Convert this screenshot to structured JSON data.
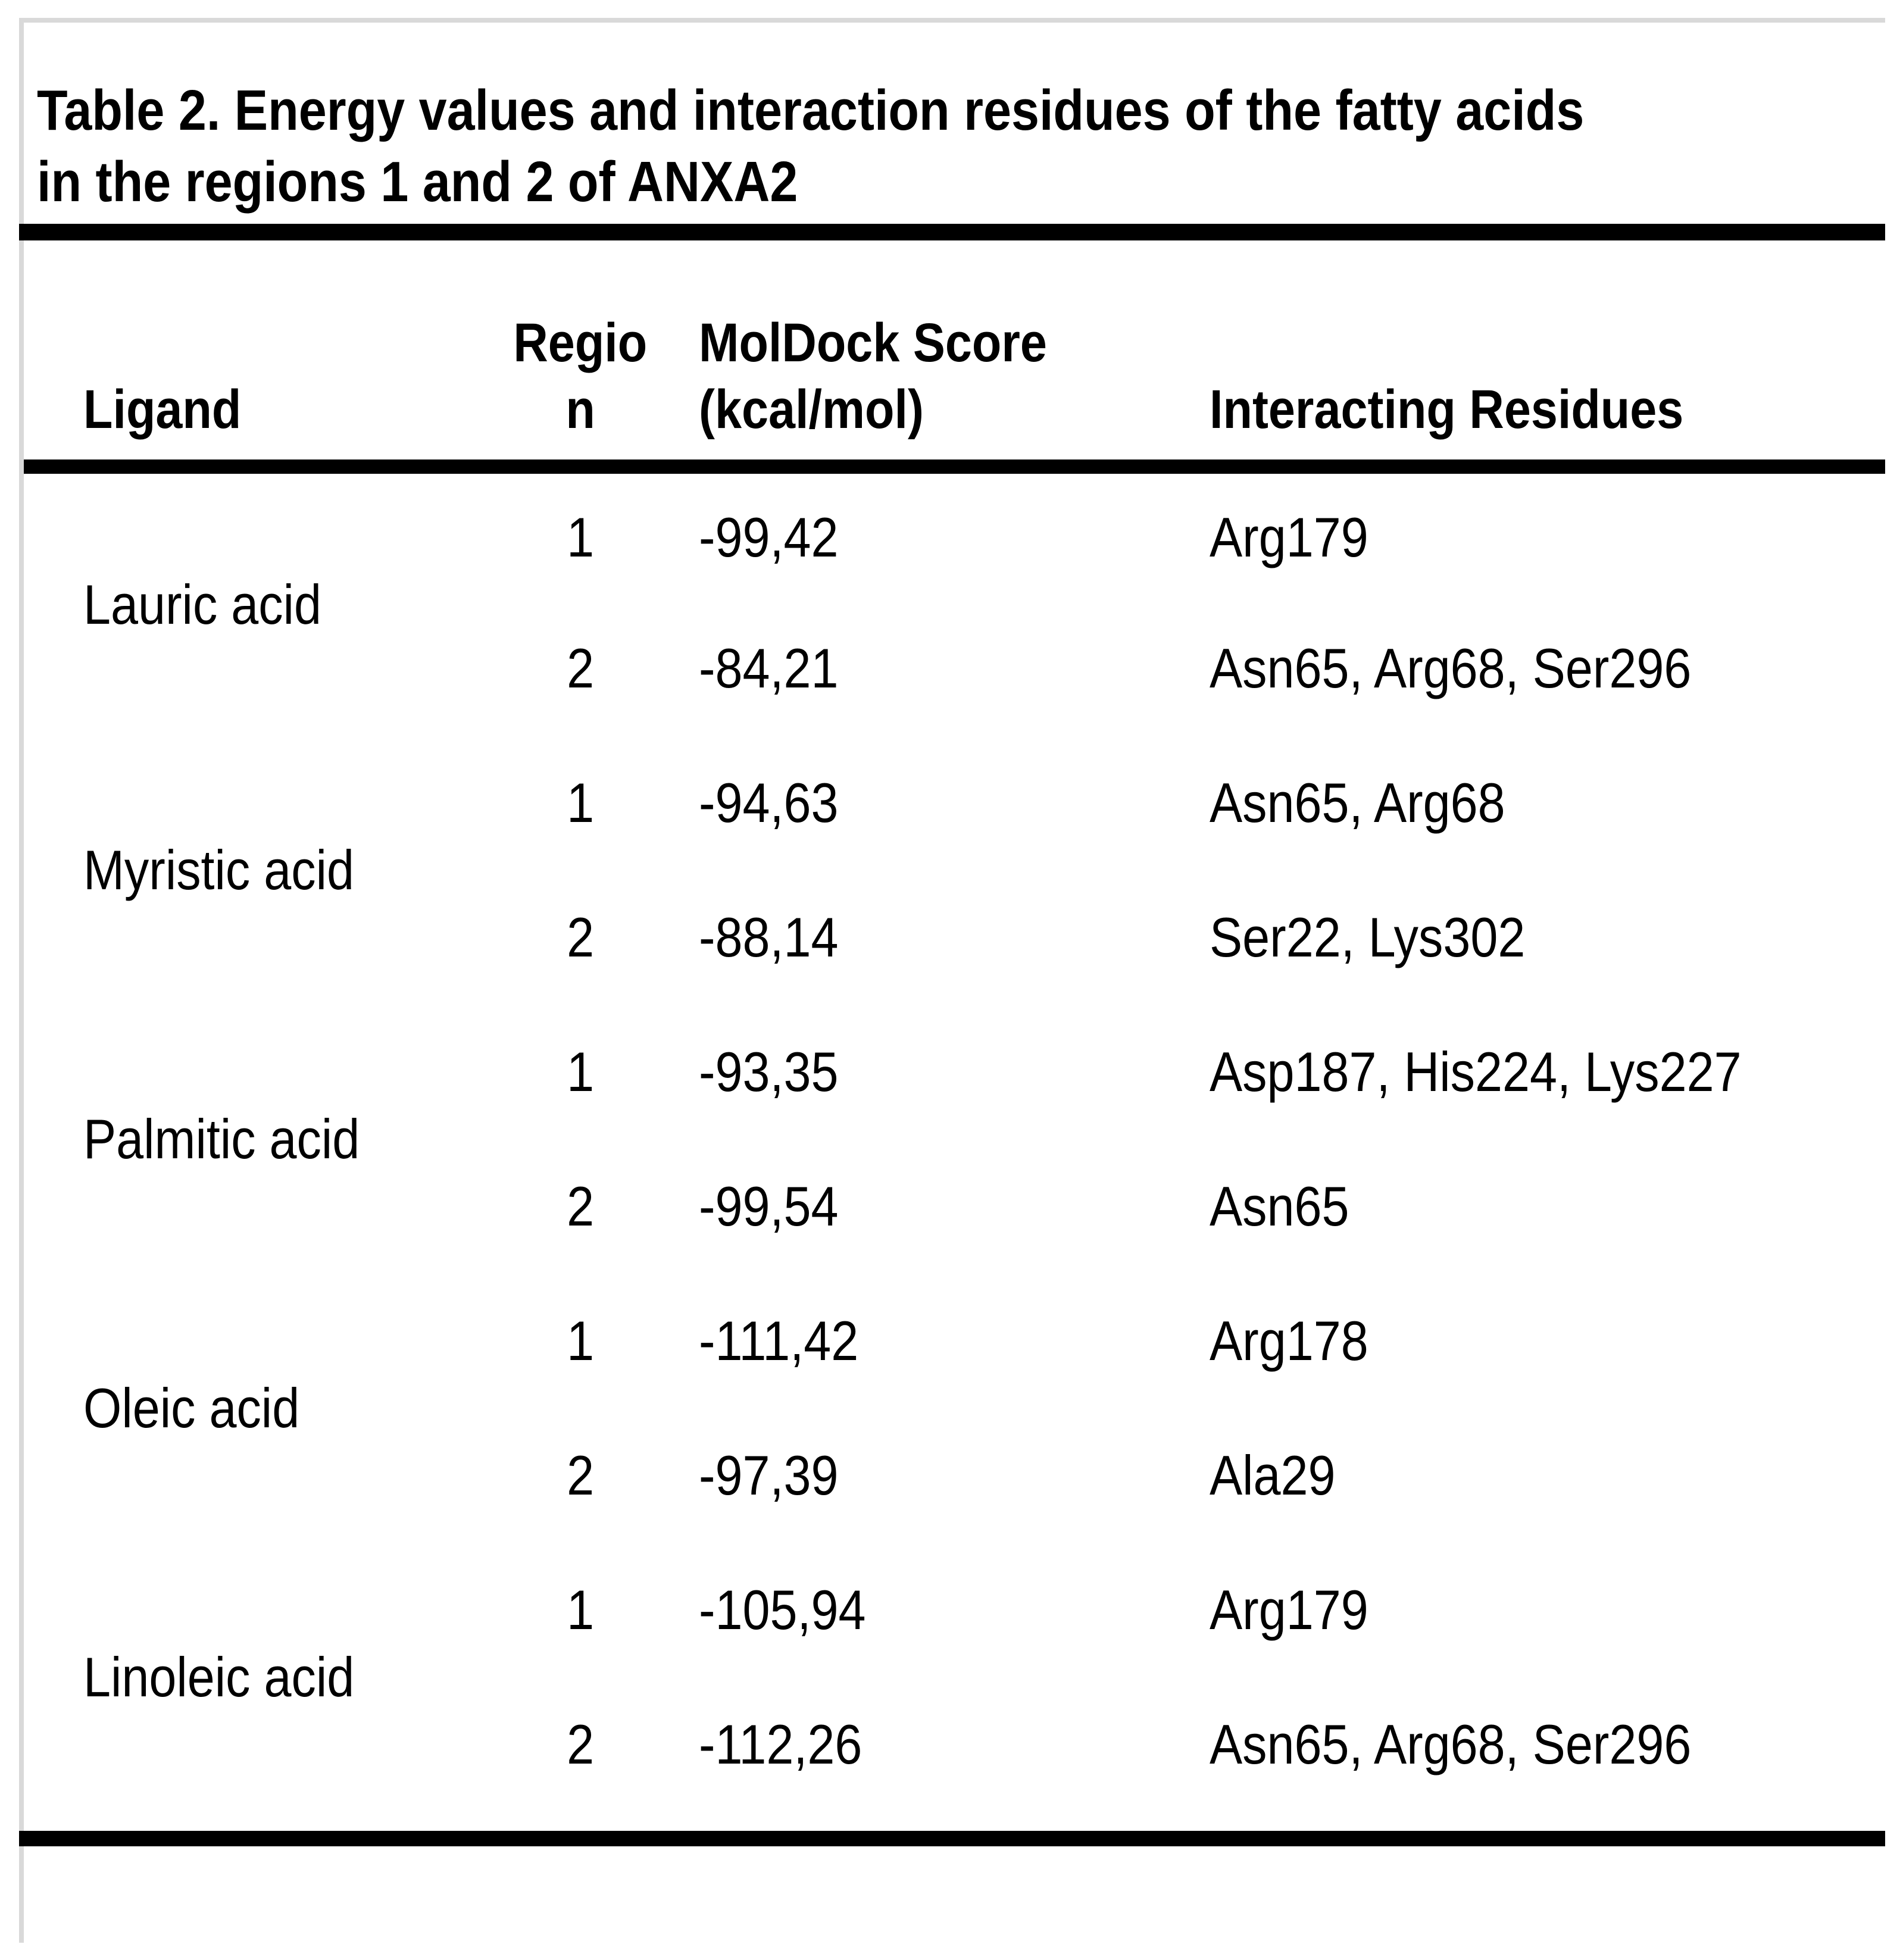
{
  "title": {
    "line1": "Table 2. Energy values and interaction residues of the fatty acids",
    "line2": "in the regions 1 and 2 of ANXA2"
  },
  "table": {
    "columns": {
      "ligand": "Ligand",
      "region_lines": [
        "Regio",
        "n"
      ],
      "score_lines": [
        "MolDock Score",
        "(kcal/mol)"
      ],
      "residues": "Interacting Residues"
    },
    "rows": [
      {
        "ligand": "Lauric acid",
        "entries": [
          {
            "region": "1",
            "score": "-99,42",
            "residues": "Arg179"
          },
          {
            "region": "2",
            "score": "-84,21",
            "residues": "Asn65, Arg68, Ser296"
          }
        ]
      },
      {
        "ligand": "Myristic acid",
        "entries": [
          {
            "region": "1",
            "score": "-94,63",
            "residues": "Asn65, Arg68"
          },
          {
            "region": "2",
            "score": "-88,14",
            "residues": "Ser22, Lys302"
          }
        ]
      },
      {
        "ligand": "Palmitic acid",
        "entries": [
          {
            "region": "1",
            "score": "-93,35",
            "residues": "Asp187, His224, Lys227"
          },
          {
            "region": "2",
            "score": "-99,54",
            "residues": "Asn65"
          }
        ]
      },
      {
        "ligand": "Oleic acid",
        "entries": [
          {
            "region": "1",
            "score": "-111,42",
            "residues": "Arg178"
          },
          {
            "region": "2",
            "score": "-97,39",
            "residues": "Ala29"
          }
        ]
      },
      {
        "ligand": "Linoleic acid",
        "entries": [
          {
            "region": "1",
            "score": "-105,94",
            "residues": "Arg179"
          },
          {
            "region": "2",
            "score": "-112,26",
            "residues": "Asn65, Arg68, Ser296"
          }
        ]
      }
    ]
  },
  "chart_data": {
    "type": "table",
    "columns": [
      "Ligand",
      "Region",
      "MolDock Score (kcal/mol)",
      "Interacting Residues"
    ],
    "rows": [
      [
        "Lauric acid",
        "1",
        "-99,42",
        "Arg179"
      ],
      [
        "Lauric acid",
        "2",
        "-84,21",
        "Asn65, Arg68, Ser296"
      ],
      [
        "Myristic acid",
        "1",
        "-94,63",
        "Asn65, Arg68"
      ],
      [
        "Myristic acid",
        "2",
        "-88,14",
        "Ser22, Lys302"
      ],
      [
        "Palmitic acid",
        "1",
        "-93,35",
        "Asp187, His224, Lys227"
      ],
      [
        "Palmitic acid",
        "2",
        "-99,54",
        "Asn65"
      ],
      [
        "Oleic acid",
        "1",
        "-111,42",
        "Arg178"
      ],
      [
        "Oleic acid",
        "2",
        "-97,39",
        "Ala29"
      ],
      [
        "Linoleic acid",
        "1",
        "-105,94",
        "Arg179"
      ],
      [
        "Linoleic acid",
        "2",
        "-112,26",
        "Asn65, Arg68, Ser296"
      ]
    ]
  },
  "colors": {
    "text": "#000000",
    "rule": "#000000",
    "page_border": "#d9d9d9",
    "background": "#ffffff"
  }
}
